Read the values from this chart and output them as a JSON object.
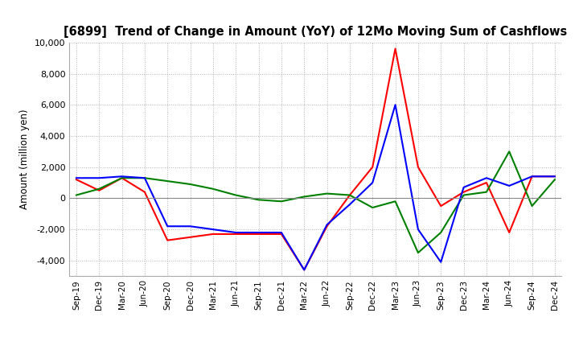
{
  "title": "[6899]  Trend of Change in Amount (YoY) of 12Mo Moving Sum of Cashflows",
  "ylabel": "Amount (million yen)",
  "x_labels": [
    "Sep-19",
    "Dec-19",
    "Mar-20",
    "Jun-20",
    "Sep-20",
    "Dec-20",
    "Mar-21",
    "Jun-21",
    "Sep-21",
    "Dec-21",
    "Mar-22",
    "Jun-22",
    "Sep-22",
    "Dec-22",
    "Mar-23",
    "Jun-23",
    "Sep-23",
    "Dec-23",
    "Mar-24",
    "Jun-24",
    "Sep-24",
    "Dec-24"
  ],
  "operating": [
    1200,
    500,
    1300,
    400,
    -2700,
    -2500,
    -2300,
    -2300,
    -2300,
    -2300,
    -4600,
    -1800,
    200,
    2000,
    9600,
    2000,
    -500,
    400,
    1000,
    -2200,
    1400,
    1400
  ],
  "investing": [
    200,
    600,
    1300,
    1300,
    1100,
    900,
    600,
    200,
    -100,
    -200,
    100,
    300,
    200,
    -600,
    -200,
    -3500,
    -2200,
    200,
    400,
    3000,
    -500,
    1200
  ],
  "free": [
    1300,
    1300,
    1400,
    1300,
    -1800,
    -1800,
    -2000,
    -2200,
    -2200,
    -2200,
    -4600,
    -1700,
    -400,
    1000,
    6000,
    -2000,
    -4100,
    700,
    1300,
    800,
    1400,
    1400
  ],
  "ylim": [
    -5000,
    10000
  ],
  "yticks": [
    -4000,
    -2000,
    0,
    2000,
    4000,
    6000,
    8000,
    10000
  ],
  "operating_color": "#ff0000",
  "investing_color": "#008000",
  "free_color": "#0000ff",
  "background_color": "#ffffff",
  "grid_color": "#b0b0b0"
}
